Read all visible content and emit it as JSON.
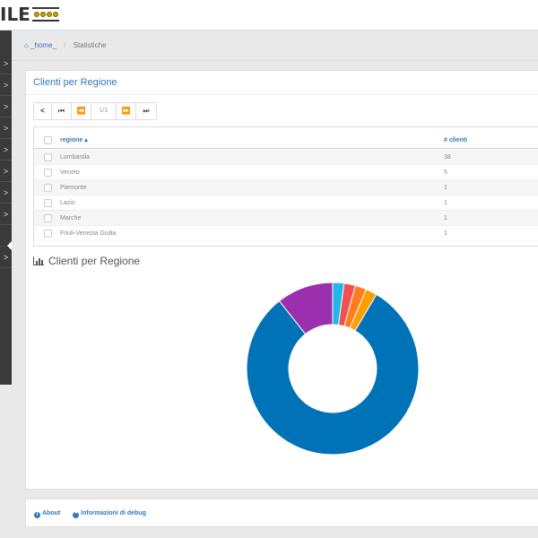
{
  "header": {
    "logo_text": "ILE"
  },
  "sidebar": {
    "items": [
      ">",
      ">",
      ">",
      ">",
      ">",
      ">",
      ">",
      ">",
      "",
      ">"
    ]
  },
  "breadcrumb": {
    "home": "_home_",
    "current": "Statistiche"
  },
  "panel": {
    "title": "Clienti per Regione"
  },
  "pager": {
    "first": "<",
    "start": "⏮",
    "prev": "⏪",
    "info": "1/1",
    "next": "⏩",
    "end": "⏭"
  },
  "table": {
    "columns": [
      "regione",
      "# clienti"
    ],
    "rows": [
      {
        "regione": "Lombardia",
        "clienti": "38"
      },
      {
        "regione": "Veneto",
        "clienti": "5"
      },
      {
        "regione": "Piemonte",
        "clienti": "1"
      },
      {
        "regione": "Lazio",
        "clienti": "1"
      },
      {
        "regione": "Marche",
        "clienti": "1"
      },
      {
        "regione": "Friuli-Venezia Giulia",
        "clienti": "1"
      }
    ]
  },
  "chart_section": {
    "title": "Clienti per Regione",
    "icon": "bar-chart-icon"
  },
  "chart_data": {
    "type": "pie",
    "categories": [
      "Lombardia",
      "Veneto",
      "Piemonte",
      "Lazio",
      "Marche",
      "Friuli-Venezia Giulia"
    ],
    "values": [
      38,
      5,
      1,
      1,
      1,
      1
    ],
    "colors": [
      "#0072b8",
      "#9b2fae",
      "#23b7e5",
      "#f05050",
      "#ff7c1f",
      "#ff9e00"
    ],
    "style": "donut"
  },
  "footer": {
    "about": "About",
    "debug": "Informazioni di debug"
  },
  "colors": {
    "accent": "#337ab7",
    "sidebar": "#3a3a3a"
  }
}
